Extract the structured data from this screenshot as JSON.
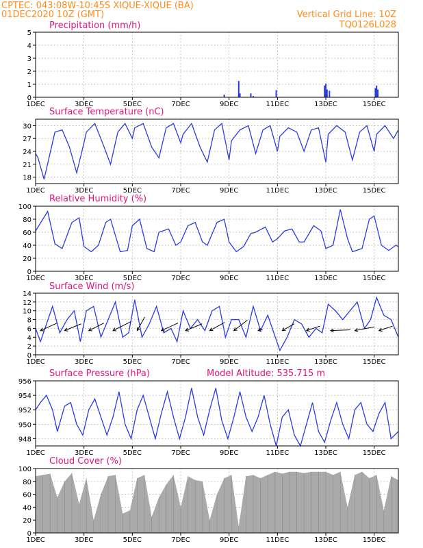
{
  "header": {
    "line1_left": "CPTEC:   043:08W-10:45S  XIQUE-XIQUE (BA)",
    "line2_left": "01DEC2020 10Z (GMT)",
    "line2_right": "Vertical Grid Line: 10Z",
    "line3_right": "TQ0126L028"
  },
  "colors": {
    "header_text": "#ff8c1a",
    "panel_title": "#e0157d",
    "series_line": "#2a3be0",
    "cloud_fill": "#aaaaaa",
    "wind_arrow": "#000000"
  },
  "chart_data": [
    {
      "id": "precip",
      "type": "bar",
      "title": "Precipitation (mm/h)",
      "ylim": [
        0,
        5
      ],
      "yticks": [
        0,
        1,
        2,
        3,
        4,
        5
      ],
      "xlim_days": [
        1,
        16
      ],
      "x_ticks": [
        "1DEC",
        "3DEC",
        "5DEC",
        "7DEC",
        "9DEC",
        "11DEC",
        "13DEC",
        "15DEC"
      ],
      "x": [
        8.8,
        9.4,
        9.45,
        9.9,
        10.0,
        10.95,
        12.95,
        13.0,
        13.05,
        13.15,
        15.05,
        15.1,
        15.15
      ],
      "values": [
        0.2,
        1.25,
        0.3,
        0.3,
        0.1,
        0.55,
        0.9,
        1.05,
        0.6,
        0.5,
        0.7,
        0.9,
        0.6
      ]
    },
    {
      "id": "temp",
      "type": "line",
      "title": "Surface Temperature (nC)",
      "ylim": [
        16.5,
        31.5
      ],
      "yticks": [
        18,
        21,
        24,
        27,
        30
      ],
      "xlim_days": [
        1,
        16
      ],
      "x_ticks": [
        "1DEC",
        "3DEC",
        "5DEC",
        "7DEC",
        "9DEC",
        "11DEC",
        "13DEC",
        "15DEC"
      ],
      "x": [
        1.0,
        1.1,
        1.35,
        1.8,
        2.1,
        2.4,
        2.7,
        3.0,
        3.1,
        3.45,
        3.8,
        4.1,
        4.4,
        4.7,
        5.0,
        5.1,
        5.45,
        5.8,
        6.1,
        6.4,
        6.7,
        7.0,
        7.1,
        7.45,
        7.8,
        8.1,
        8.4,
        8.7,
        9.0,
        9.1,
        9.45,
        9.8,
        10.1,
        10.4,
        10.7,
        11.0,
        11.1,
        11.45,
        11.8,
        12.1,
        12.4,
        12.7,
        13.0,
        13.1,
        13.45,
        13.8,
        14.1,
        14.4,
        14.7,
        15.0,
        15.1,
        15.45,
        15.8,
        16.0
      ],
      "values": [
        23.5,
        22.5,
        17.5,
        28.5,
        29,
        25,
        19,
        26,
        28.5,
        30.5,
        25.5,
        21,
        28.5,
        30.5,
        27,
        29.5,
        30.5,
        25,
        22.5,
        29.5,
        30.5,
        26,
        28,
        30.5,
        25,
        21.5,
        29,
        30.5,
        22,
        26.5,
        29,
        30,
        23.5,
        29,
        30,
        24,
        27.5,
        29.5,
        28.5,
        24,
        29,
        29.5,
        21.5,
        28,
        30,
        28.5,
        22,
        28.5,
        30,
        24,
        28,
        30,
        27,
        29
      ]
    },
    {
      "id": "rh",
      "type": "line",
      "title": "Relative Humidity (%)",
      "ylim": [
        0,
        100
      ],
      "yticks": [
        0,
        20,
        40,
        60,
        80,
        100
      ],
      "xlim_days": [
        1,
        16
      ],
      "x_ticks": [
        "1DEC",
        "3DEC",
        "5DEC",
        "7DEC",
        "9DEC",
        "11DEC",
        "13DEC",
        "15DEC"
      ],
      "x": [
        1.0,
        1.3,
        1.5,
        1.8,
        2.1,
        2.5,
        2.8,
        3.0,
        3.3,
        3.6,
        3.9,
        4.1,
        4.5,
        4.8,
        5.0,
        5.3,
        5.6,
        5.9,
        6.1,
        6.5,
        6.8,
        7.0,
        7.3,
        7.6,
        7.9,
        8.1,
        8.5,
        8.8,
        9.0,
        9.3,
        9.6,
        9.9,
        10.1,
        10.5,
        10.8,
        11.0,
        11.3,
        11.6,
        11.9,
        12.1,
        12.5,
        12.8,
        13.0,
        13.3,
        13.6,
        13.9,
        14.1,
        14.5,
        14.8,
        15.0,
        15.3,
        15.6,
        15.9,
        16.0
      ],
      "values": [
        62,
        80,
        92,
        42,
        35,
        75,
        82,
        38,
        30,
        40,
        75,
        80,
        30,
        32,
        70,
        80,
        35,
        30,
        60,
        65,
        40,
        45,
        70,
        75,
        45,
        40,
        75,
        80,
        45,
        30,
        38,
        58,
        60,
        68,
        45,
        50,
        62,
        65,
        45,
        45,
        70,
        62,
        35,
        40,
        95,
        50,
        30,
        35,
        80,
        85,
        40,
        32,
        40,
        38
      ]
    },
    {
      "id": "wind",
      "type": "line",
      "title": "Surface Wind (m/s)",
      "ylim": [
        0,
        14
      ],
      "yticks": [
        0,
        2,
        4,
        6,
        8,
        10,
        12,
        14
      ],
      "xlim_days": [
        1,
        16
      ],
      "x_ticks": [
        "1DEC",
        "3DEC",
        "5DEC",
        "7DEC",
        "9DEC",
        "11DEC",
        "13DEC",
        "15DEC"
      ],
      "x": [
        1.0,
        1.2,
        1.45,
        1.7,
        2.0,
        2.3,
        2.6,
        2.85,
        3.1,
        3.4,
        3.7,
        4.0,
        4.3,
        4.6,
        4.85,
        5.1,
        5.4,
        5.7,
        6.0,
        6.3,
        6.6,
        6.85,
        7.1,
        7.4,
        7.7,
        8.0,
        8.3,
        8.6,
        8.85,
        9.1,
        9.4,
        9.7,
        10.0,
        10.3,
        10.6,
        10.85,
        11.1,
        11.4,
        11.7,
        12.0,
        12.3,
        12.6,
        12.85,
        13.1,
        13.4,
        13.7,
        14.0,
        14.3,
        14.6,
        14.85,
        15.1,
        15.4,
        15.7,
        16.0
      ],
      "values": [
        6,
        3,
        7,
        11,
        5,
        8,
        10,
        3,
        10,
        11,
        4,
        8,
        12,
        4,
        5,
        12.5,
        4,
        7,
        11,
        5,
        6,
        3,
        10,
        6,
        8,
        5.5,
        10,
        11,
        4,
        8,
        8,
        4,
        11,
        5.5,
        9,
        5,
        1,
        4,
        8,
        7,
        4,
        6,
        5,
        11.5,
        10,
        8,
        10,
        12,
        6,
        8,
        13,
        9,
        8,
        4
      ],
      "arrows": [
        {
          "x": 1.2,
          "u": 1.1,
          "v": 0.5
        },
        {
          "x": 2.2,
          "u": 1.1,
          "v": 0.45
        },
        {
          "x": 3.2,
          "u": 1.0,
          "v": 0.5
        },
        {
          "x": 4.2,
          "u": 1.2,
          "v": 0.6
        },
        {
          "x": 5.2,
          "u": 0.5,
          "v": 0.9
        },
        {
          "x": 6.2,
          "u": 1.1,
          "v": 0.5
        },
        {
          "x": 7.2,
          "u": 1.1,
          "v": 0.45
        },
        {
          "x": 8.2,
          "u": 1.0,
          "v": 0.55
        },
        {
          "x": 9.2,
          "u": 0.9,
          "v": 0.7
        },
        {
          "x": 10.2,
          "u": 0.3,
          "v": 0.1
        },
        {
          "x": 11.2,
          "u": 0.8,
          "v": 0.45
        },
        {
          "x": 12.2,
          "u": 0.9,
          "v": 0.3
        },
        {
          "x": 13.2,
          "u": 1.3,
          "v": 0.05
        },
        {
          "x": 14.2,
          "u": 1.3,
          "v": 0.25
        },
        {
          "x": 15.2,
          "u": 0.9,
          "v": 0.3
        }
      ]
    },
    {
      "id": "pressure",
      "type": "line",
      "title": "Surface Pressure (hPa)",
      "subtitle": "Model Altitude: 535.715  m",
      "ylim": [
        947,
        956
      ],
      "yticks": [
        948,
        950,
        952,
        954,
        956
      ],
      "xlim_days": [
        1,
        16
      ],
      "x_ticks": [
        "1DEC",
        "3DEC",
        "5DEC",
        "7DEC",
        "9DEC",
        "11DEC",
        "13DEC",
        "15DEC"
      ],
      "x": [
        1.0,
        1.2,
        1.45,
        1.7,
        1.9,
        2.2,
        2.45,
        2.7,
        2.95,
        3.2,
        3.45,
        3.7,
        3.95,
        4.2,
        4.45,
        4.7,
        4.95,
        5.2,
        5.45,
        5.7,
        5.95,
        6.2,
        6.45,
        6.7,
        6.95,
        7.2,
        7.45,
        7.7,
        7.95,
        8.2,
        8.45,
        8.7,
        8.95,
        9.2,
        9.45,
        9.7,
        9.95,
        10.2,
        10.45,
        10.7,
        10.95,
        11.2,
        11.45,
        11.7,
        11.95,
        12.2,
        12.45,
        12.7,
        12.95,
        13.2,
        13.45,
        13.7,
        13.95,
        14.2,
        14.45,
        14.7,
        14.95,
        15.2,
        15.45,
        15.7,
        16.0
      ],
      "values": [
        952,
        953,
        954,
        952,
        949,
        952.5,
        953,
        950,
        948.5,
        952,
        953.5,
        951,
        948.5,
        951,
        954.5,
        950,
        948,
        952,
        954,
        951,
        948,
        951.5,
        954.5,
        951,
        948,
        951,
        955,
        951,
        948.5,
        952,
        955,
        950.5,
        948,
        951,
        954.5,
        951,
        949,
        951,
        954,
        950,
        947,
        951,
        952,
        948.5,
        947,
        950,
        953,
        949,
        947.5,
        950.5,
        953,
        950,
        948,
        952,
        953,
        950,
        949,
        951.5,
        953,
        948,
        949
      ]
    },
    {
      "id": "cloud",
      "type": "area",
      "title": "Cloud Cover (%)",
      "ylim": [
        0,
        100
      ],
      "yticks": [
        0,
        20,
        40,
        60,
        80,
        100
      ],
      "xlim_days": [
        1,
        16
      ],
      "x_ticks": [
        "1DEC",
        "3DEC",
        "5DEC",
        "7DEC",
        "9DEC",
        "11DEC",
        "13DEC",
        "15DEC"
      ],
      "x": [
        1.0,
        1.3,
        1.6,
        1.9,
        2.2,
        2.5,
        2.8,
        3.1,
        3.4,
        3.7,
        4.0,
        4.3,
        4.6,
        4.9,
        5.2,
        5.5,
        5.8,
        6.1,
        6.4,
        6.7,
        7.0,
        7.3,
        7.6,
        7.9,
        8.2,
        8.5,
        8.8,
        9.1,
        9.4,
        9.7,
        10.0,
        10.3,
        10.6,
        10.9,
        11.2,
        11.5,
        11.8,
        12.1,
        12.4,
        12.7,
        13.0,
        13.3,
        13.6,
        13.9,
        14.2,
        14.5,
        14.8,
        15.1,
        15.4,
        15.7,
        16.0
      ],
      "values": [
        88,
        90,
        92,
        55,
        80,
        93,
        45,
        85,
        20,
        60,
        88,
        90,
        30,
        35,
        85,
        90,
        25,
        55,
        75,
        90,
        40,
        88,
        82,
        80,
        20,
        60,
        85,
        90,
        10,
        88,
        90,
        85,
        90,
        95,
        92,
        95,
        95,
        93,
        95,
        95,
        95,
        90,
        95,
        40,
        90,
        95,
        85,
        90,
        35,
        88,
        82
      ]
    }
  ]
}
